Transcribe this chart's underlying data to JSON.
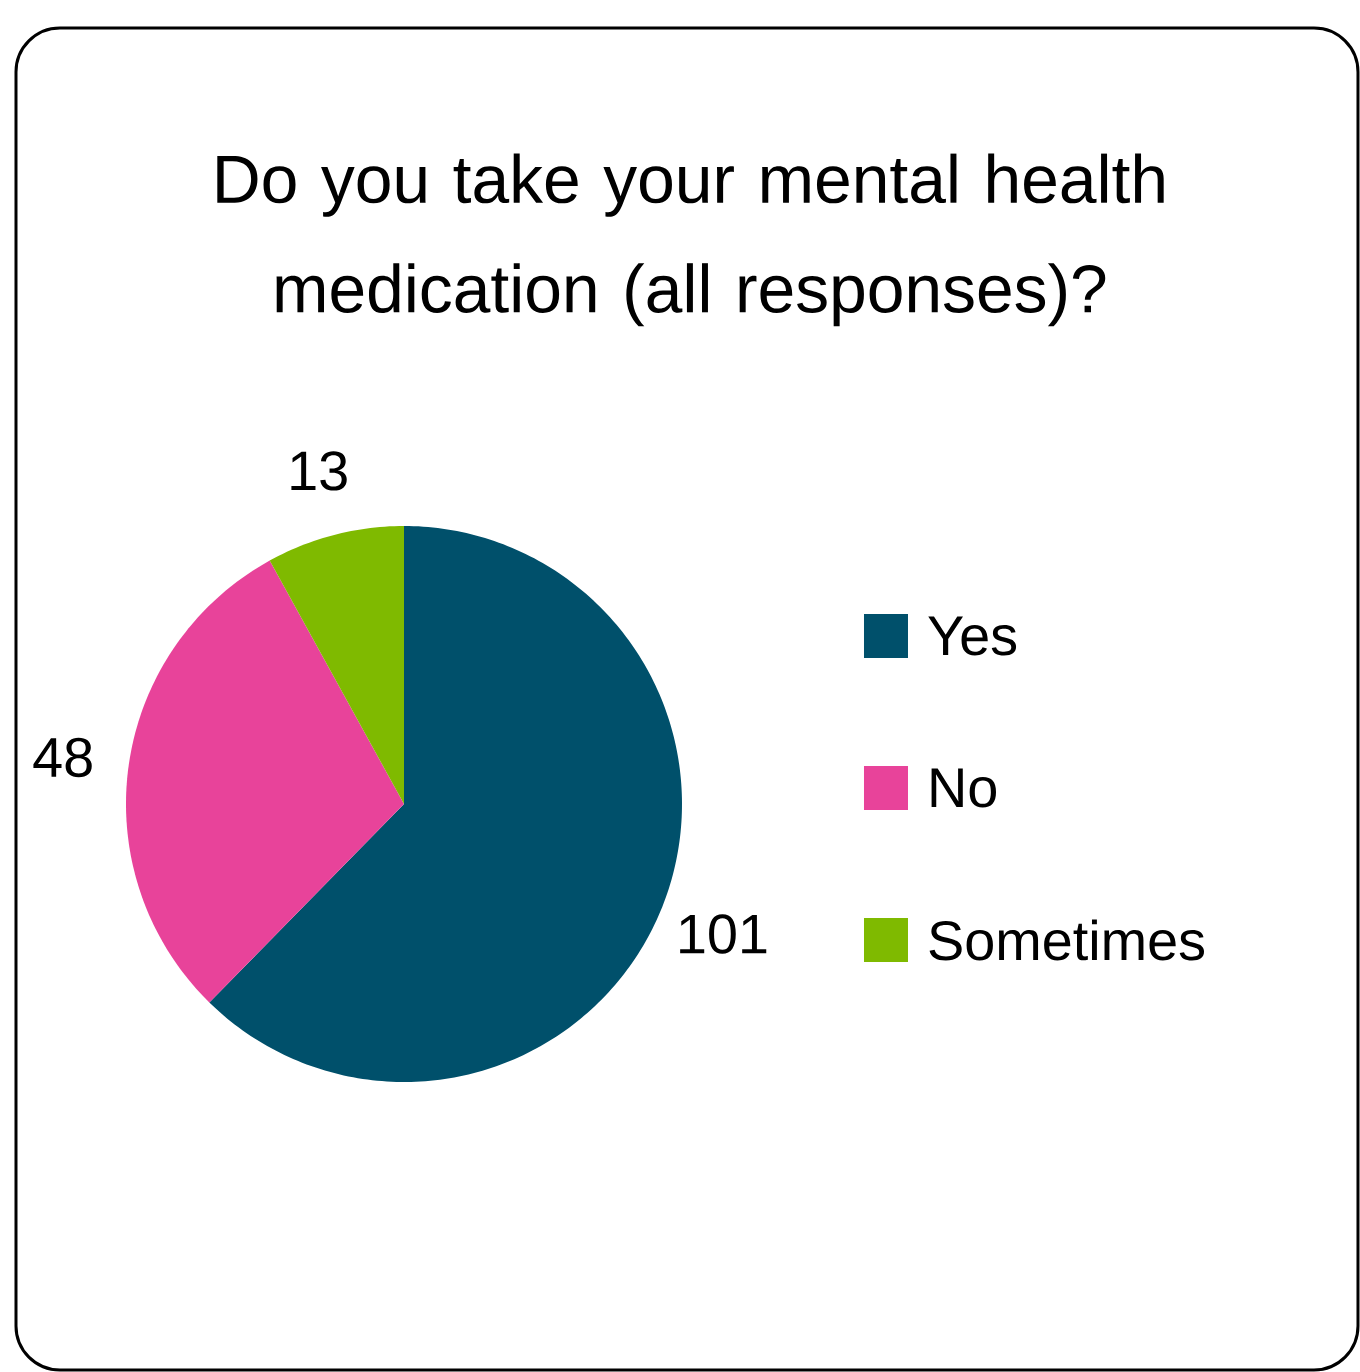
{
  "chart_data": {
    "type": "pie",
    "title": "Do you take your mental health medication (all responses)?",
    "categories": [
      "Yes",
      "No",
      "Sometimes"
    ],
    "values": [
      101,
      48,
      13
    ],
    "colors": [
      "#00506b",
      "#e8439a",
      "#7fba00"
    ],
    "data_labels": true,
    "legend": "right"
  }
}
